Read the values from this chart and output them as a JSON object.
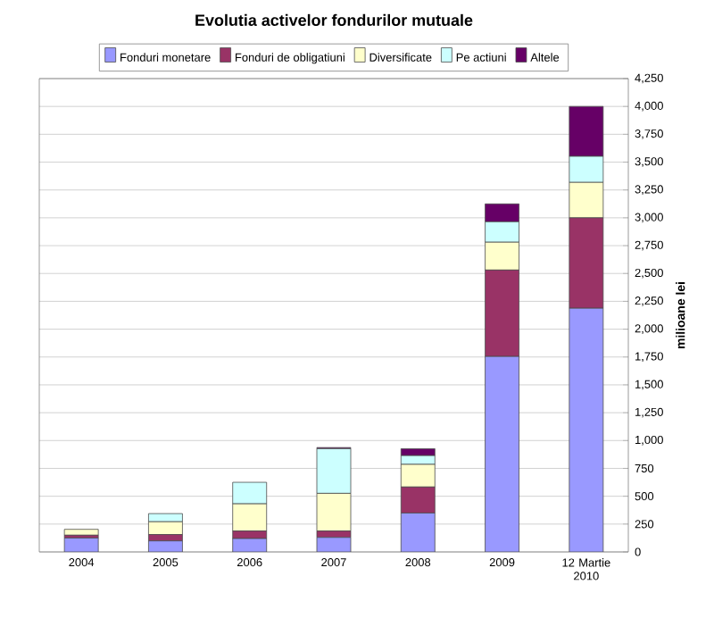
{
  "chart_data": {
    "type": "bar",
    "stacked": true,
    "title": "Evolutia activelor fondurilor mutuale",
    "ylabel": "milioane lei",
    "categories": [
      "2004",
      "2005",
      "2006",
      "2007",
      "2008",
      "2009",
      "12 Martie 2010"
    ],
    "series": [
      {
        "name": "Fonduri monetare",
        "color": "#9999ff",
        "values": [
          125,
          99,
          120,
          130,
          349,
          1755,
          2188
        ]
      },
      {
        "name": "Fonduri de obligatiuni",
        "color": "#993366",
        "values": [
          25,
          57,
          68,
          58,
          234,
          776,
          812
        ]
      },
      {
        "name": "Diversificate",
        "color": "#ffffcc",
        "values": [
          53,
          115,
          244,
          338,
          203,
          250,
          318
        ]
      },
      {
        "name": "Pe actiuni",
        "color": "#ccffff",
        "values": [
          null,
          73,
          193,
          401,
          79,
          183,
          234
        ]
      },
      {
        "name": "Altele",
        "color": "#660066",
        "values": [
          0,
          0,
          0,
          10,
          62,
          161,
          448
        ]
      }
    ],
    "ylim": [
      0,
      4250
    ],
    "yticks": [
      0,
      250,
      500,
      750,
      {
        "value": 1000,
        "label": "1,000"
      },
      {
        "value": 1250,
        "label": "1,250"
      },
      {
        "value": 1500,
        "label": "1,500"
      },
      {
        "value": 1750,
        "label": "1,750"
      },
      {
        "value": 2000,
        "label": "2,000"
      },
      {
        "value": 2250,
        "label": "2,250"
      },
      {
        "value": 2500,
        "label": "2,500"
      },
      {
        "value": 2750,
        "label": "2,750"
      },
      {
        "value": 3000,
        "label": "3,000"
      },
      {
        "value": 3250,
        "label": "3,250"
      },
      {
        "value": 3500,
        "label": "3,500"
      },
      {
        "value": 3750,
        "label": "3,750"
      },
      {
        "value": 4000,
        "label": "4,000"
      },
      {
        "value": 4250,
        "label": "4,250"
      }
    ],
    "grid": "y",
    "legend": "top"
  }
}
